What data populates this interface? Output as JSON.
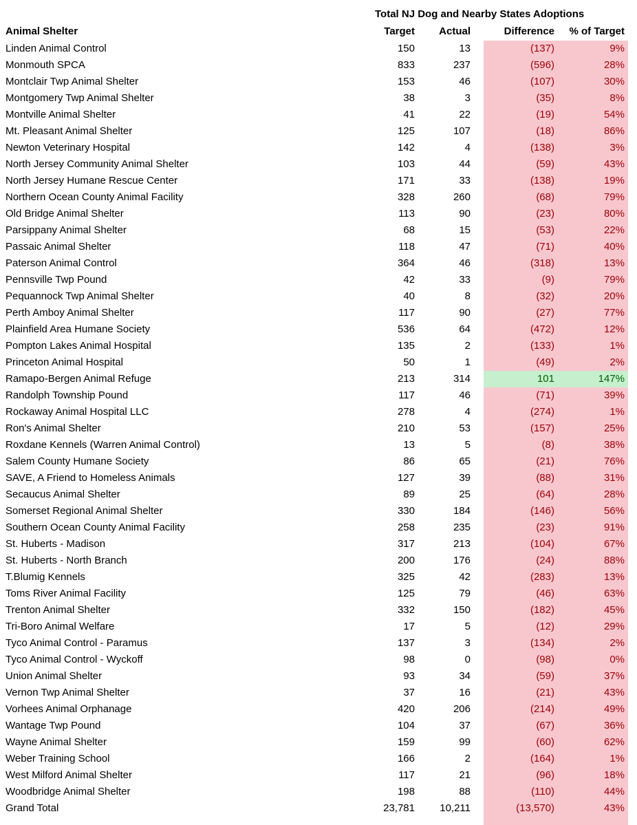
{
  "colors": {
    "negative_bg": "#f8c7ce",
    "negative_text": "#9c0006",
    "positive_bg": "#c6efce",
    "positive_text": "#006100"
  },
  "chart_data": {
    "type": "table",
    "title": "Total NJ Dog and Nearby States Adoptions",
    "columns": [
      "Animal Shelter",
      "Target",
      "Actual",
      "Difference",
      "% of Target"
    ],
    "rows": [
      {
        "name": "Linden Animal Control",
        "target": "150",
        "actual": "13",
        "diff": "(137)",
        "pct": "9%",
        "status": "negative"
      },
      {
        "name": "Monmouth SPCA",
        "target": "833",
        "actual": "237",
        "diff": "(596)",
        "pct": "28%",
        "status": "negative"
      },
      {
        "name": "Montclair Twp Animal Shelter",
        "target": "153",
        "actual": "46",
        "diff": "(107)",
        "pct": "30%",
        "status": "negative"
      },
      {
        "name": "Montgomery Twp Animal Shelter",
        "target": "38",
        "actual": "3",
        "diff": "(35)",
        "pct": "8%",
        "status": "negative"
      },
      {
        "name": "Montville Animal Shelter",
        "target": "41",
        "actual": "22",
        "diff": "(19)",
        "pct": "54%",
        "status": "negative"
      },
      {
        "name": "Mt. Pleasant Animal Shelter",
        "target": "125",
        "actual": "107",
        "diff": "(18)",
        "pct": "86%",
        "status": "negative"
      },
      {
        "name": "Newton Veterinary Hospital",
        "target": "142",
        "actual": "4",
        "diff": "(138)",
        "pct": "3%",
        "status": "negative"
      },
      {
        "name": "North Jersey Community Animal Shelter",
        "target": "103",
        "actual": "44",
        "diff": "(59)",
        "pct": "43%",
        "status": "negative"
      },
      {
        "name": "North Jersey Humane Rescue Center",
        "target": "171",
        "actual": "33",
        "diff": "(138)",
        "pct": "19%",
        "status": "negative"
      },
      {
        "name": "Northern Ocean County Animal Facility",
        "target": "328",
        "actual": "260",
        "diff": "(68)",
        "pct": "79%",
        "status": "negative"
      },
      {
        "name": "Old Bridge Animal Shelter",
        "target": "113",
        "actual": "90",
        "diff": "(23)",
        "pct": "80%",
        "status": "negative"
      },
      {
        "name": "Parsippany Animal Shelter",
        "target": "68",
        "actual": "15",
        "diff": "(53)",
        "pct": "22%",
        "status": "negative"
      },
      {
        "name": "Passaic Animal Shelter",
        "target": "118",
        "actual": "47",
        "diff": "(71)",
        "pct": "40%",
        "status": "negative"
      },
      {
        "name": "Paterson Animal Control",
        "target": "364",
        "actual": "46",
        "diff": "(318)",
        "pct": "13%",
        "status": "negative"
      },
      {
        "name": "Pennsville Twp Pound",
        "target": "42",
        "actual": "33",
        "diff": "(9)",
        "pct": "79%",
        "status": "negative"
      },
      {
        "name": "Pequannock Twp Animal Shelter",
        "target": "40",
        "actual": "8",
        "diff": "(32)",
        "pct": "20%",
        "status": "negative"
      },
      {
        "name": "Perth Amboy Animal Shelter",
        "target": "117",
        "actual": "90",
        "diff": "(27)",
        "pct": "77%",
        "status": "negative"
      },
      {
        "name": "Plainfield Area Humane Society",
        "target": "536",
        "actual": "64",
        "diff": "(472)",
        "pct": "12%",
        "status": "negative"
      },
      {
        "name": "Pompton Lakes Animal Hospital",
        "target": "135",
        "actual": "2",
        "diff": "(133)",
        "pct": "1%",
        "status": "negative"
      },
      {
        "name": "Princeton Animal Hospital",
        "target": "50",
        "actual": "1",
        "diff": "(49)",
        "pct": "2%",
        "status": "negative"
      },
      {
        "name": "Ramapo-Bergen Animal Refuge",
        "target": "213",
        "actual": "314",
        "diff": "101",
        "pct": "147%",
        "status": "positive"
      },
      {
        "name": "Randolph Township Pound",
        "target": "117",
        "actual": "46",
        "diff": "(71)",
        "pct": "39%",
        "status": "negative"
      },
      {
        "name": "Rockaway Animal Hospital LLC",
        "target": "278",
        "actual": "4",
        "diff": "(274)",
        "pct": "1%",
        "status": "negative"
      },
      {
        "name": "Ron's Animal Shelter",
        "target": "210",
        "actual": "53",
        "diff": "(157)",
        "pct": "25%",
        "status": "negative"
      },
      {
        "name": "Roxdane Kennels (Warren Animal Control)",
        "target": "13",
        "actual": "5",
        "diff": "(8)",
        "pct": "38%",
        "status": "negative"
      },
      {
        "name": "Salem County Humane Society",
        "target": "86",
        "actual": "65",
        "diff": "(21)",
        "pct": "76%",
        "status": "negative"
      },
      {
        "name": "SAVE, A Friend to Homeless Animals",
        "target": "127",
        "actual": "39",
        "diff": "(88)",
        "pct": "31%",
        "status": "negative"
      },
      {
        "name": "Secaucus Animal Shelter",
        "target": "89",
        "actual": "25",
        "diff": "(64)",
        "pct": "28%",
        "status": "negative"
      },
      {
        "name": "Somerset Regional Animal Shelter",
        "target": "330",
        "actual": "184",
        "diff": "(146)",
        "pct": "56%",
        "status": "negative"
      },
      {
        "name": "Southern Ocean County Animal Facility",
        "target": "258",
        "actual": "235",
        "diff": "(23)",
        "pct": "91%",
        "status": "negative"
      },
      {
        "name": "St. Huberts - Madison",
        "target": "317",
        "actual": "213",
        "diff": "(104)",
        "pct": "67%",
        "status": "negative"
      },
      {
        "name": "St. Huberts - North Branch",
        "target": "200",
        "actual": "176",
        "diff": "(24)",
        "pct": "88%",
        "status": "negative"
      },
      {
        "name": "T.Blumig Kennels",
        "target": "325",
        "actual": "42",
        "diff": "(283)",
        "pct": "13%",
        "status": "negative"
      },
      {
        "name": "Toms River Animal Facility",
        "target": "125",
        "actual": "79",
        "diff": "(46)",
        "pct": "63%",
        "status": "negative"
      },
      {
        "name": "Trenton Animal Shelter",
        "target": "332",
        "actual": "150",
        "diff": "(182)",
        "pct": "45%",
        "status": "negative"
      },
      {
        "name": "Tri-Boro Animal Welfare",
        "target": "17",
        "actual": "5",
        "diff": "(12)",
        "pct": "29%",
        "status": "negative"
      },
      {
        "name": "Tyco Animal Control - Paramus",
        "target": "137",
        "actual": "3",
        "diff": "(134)",
        "pct": "2%",
        "status": "negative"
      },
      {
        "name": "Tyco Animal Control - Wyckoff",
        "target": "98",
        "actual": "0",
        "diff": "(98)",
        "pct": "0%",
        "status": "negative"
      },
      {
        "name": "Union Animal Shelter",
        "target": "93",
        "actual": "34",
        "diff": "(59)",
        "pct": "37%",
        "status": "negative"
      },
      {
        "name": "Vernon Twp Animal Shelter",
        "target": "37",
        "actual": "16",
        "diff": "(21)",
        "pct": "43%",
        "status": "negative"
      },
      {
        "name": "Vorhees Animal Orphanage",
        "target": "420",
        "actual": "206",
        "diff": "(214)",
        "pct": "49%",
        "status": "negative"
      },
      {
        "name": "Wantage Twp Pound",
        "target": "104",
        "actual": "37",
        "diff": "(67)",
        "pct": "36%",
        "status": "negative"
      },
      {
        "name": "Wayne Animal Shelter",
        "target": "159",
        "actual": "99",
        "diff": "(60)",
        "pct": "62%",
        "status": "negative"
      },
      {
        "name": "Weber Training School",
        "target": "166",
        "actual": "2",
        "diff": "(164)",
        "pct": "1%",
        "status": "negative"
      },
      {
        "name": "West Milford Animal Shelter",
        "target": "117",
        "actual": "21",
        "diff": "(96)",
        "pct": "18%",
        "status": "negative"
      },
      {
        "name": "Woodbridge Animal Shelter",
        "target": "198",
        "actual": "88",
        "diff": "(110)",
        "pct": "44%",
        "status": "negative"
      },
      {
        "name": "Grand Total",
        "target": "23,781",
        "actual": "10,211",
        "diff": "(13,570)",
        "pct": "43%",
        "status": "negative"
      }
    ]
  }
}
